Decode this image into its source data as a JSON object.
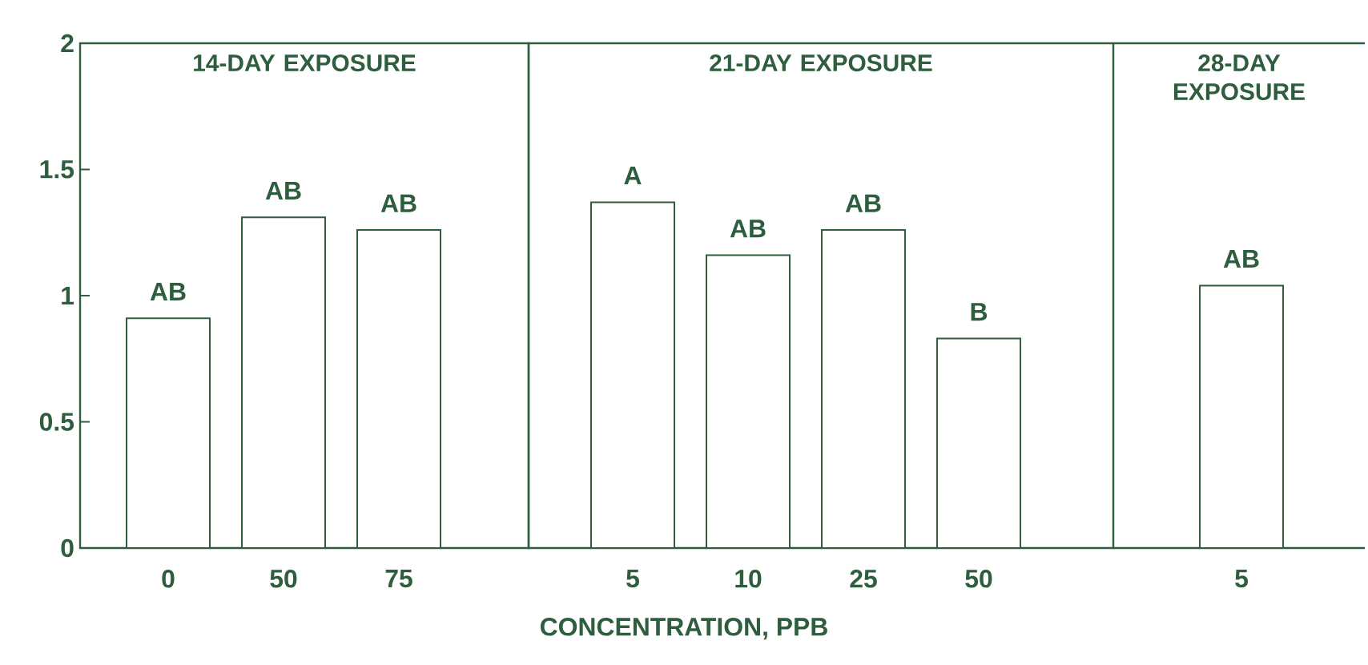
{
  "chart_data": [
    {
      "type": "bar",
      "title": "14-DAY EXPOSURE",
      "categories": [
        "0",
        "50",
        "75"
      ],
      "values": [
        0.91,
        1.31,
        1.26
      ],
      "value_labels": [
        "AB",
        "AB",
        "AB"
      ],
      "color": "#ffffff",
      "ylim": [
        0,
        2
      ],
      "yticks": [
        0,
        0.5,
        1,
        1.5,
        2
      ]
    },
    {
      "type": "bar",
      "title": "21-DAY EXPOSURE",
      "xlabel": "CONCENTRATION, PPB",
      "categories": [
        "5",
        "10",
        "25",
        "50"
      ],
      "values": [
        1.37,
        1.16,
        1.26,
        0.83
      ],
      "value_labels": [
        "A",
        "AB",
        "AB",
        "B"
      ],
      "color": "#ffffff",
      "ylim": [
        0,
        2
      ],
      "yticks": [
        0,
        0.5,
        1,
        1.5,
        2
      ],
      "tick_labels": "x"
    },
    {
      "type": "bar",
      "title": "28-DAY EXPOSURE",
      "categories": [
        "5"
      ],
      "values": [
        1.04
      ],
      "value_labels": [
        "AB"
      ],
      "color": "#ffffff",
      "ylim": [
        0,
        2
      ],
      "yticks": [
        0,
        0.5,
        1,
        1.5,
        2
      ],
      "tick_labels": "x"
    }
  ]
}
